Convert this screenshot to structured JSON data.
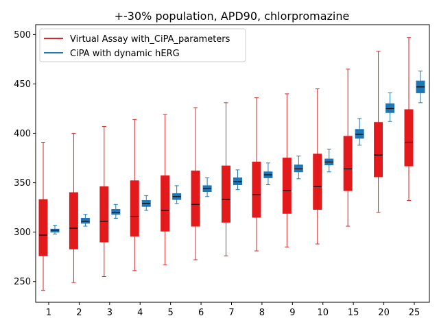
{
  "chart_data": {
    "type": "box",
    "title": "+-30% population, APD90, chlorpromazine",
    "xlabel": "",
    "ylabel": "",
    "categories": [
      "1",
      "2",
      "3",
      "4",
      "5",
      "6",
      "7",
      "8",
      "9",
      "10",
      "15",
      "20",
      "25"
    ],
    "ylim": [
      229,
      510
    ],
    "yticks": [
      250,
      300,
      350,
      400,
      450,
      500
    ],
    "legend_position": "top-left",
    "grid": false,
    "series": [
      {
        "name": "Virtual Assay with_CiPA_parameters",
        "color": "#d62728",
        "fill": "#e31a1c",
        "boxes": [
          {
            "whislo": 241,
            "q1": 276,
            "med": 297,
            "q3": 333,
            "whishi": 391
          },
          {
            "whislo": 249,
            "q1": 283,
            "med": 304,
            "q3": 340,
            "whishi": 400
          },
          {
            "whislo": 255,
            "q1": 290,
            "med": 311,
            "q3": 346,
            "whishi": 407
          },
          {
            "whislo": 261,
            "q1": 296,
            "med": 316,
            "q3": 352,
            "whishi": 414
          },
          {
            "whislo": 267,
            "q1": 301,
            "med": 322,
            "q3": 357,
            "whishi": 419
          },
          {
            "whislo": 272,
            "q1": 306,
            "med": 328,
            "q3": 362,
            "whishi": 426
          },
          {
            "whislo": 276,
            "q1": 310,
            "med": 333,
            "q3": 367,
            "whishi": 431
          },
          {
            "whislo": 281,
            "q1": 315,
            "med": 338,
            "q3": 371,
            "whishi": 436
          },
          {
            "whislo": 285,
            "q1": 319,
            "med": 342,
            "q3": 375,
            "whishi": 440
          },
          {
            "whislo": 288,
            "q1": 323,
            "med": 346,
            "q3": 379,
            "whishi": 445
          },
          {
            "whislo": 306,
            "q1": 342,
            "med": 364,
            "q3": 397,
            "whishi": 465
          },
          {
            "whislo": 320,
            "q1": 356,
            "med": 378,
            "q3": 411,
            "whishi": 483
          },
          {
            "whislo": 332,
            "q1": 367,
            "med": 391,
            "q3": 424,
            "whishi": 497
          }
        ]
      },
      {
        "name": "CiPA with dynamic hERG",
        "color": "#1f77b4",
        "fill": "#1f77b4",
        "boxes": [
          {
            "whislo": 298,
            "q1": 300,
            "med": 302,
            "q3": 303,
            "whishi": 307
          },
          {
            "whislo": 306,
            "q1": 309,
            "med": 311,
            "q3": 314,
            "whishi": 318
          },
          {
            "whislo": 314,
            "q1": 318,
            "med": 320,
            "q3": 323,
            "whishi": 328
          },
          {
            "whislo": 322,
            "q1": 326,
            "med": 329,
            "q3": 332,
            "whishi": 337
          },
          {
            "whislo": 329,
            "q1": 333,
            "med": 336,
            "q3": 339,
            "whishi": 347
          },
          {
            "whislo": 336,
            "q1": 341,
            "med": 344,
            "q3": 347,
            "whishi": 355
          },
          {
            "whislo": 343,
            "q1": 348,
            "med": 351,
            "q3": 355,
            "whishi": 363
          },
          {
            "whislo": 348,
            "q1": 355,
            "med": 358,
            "q3": 361,
            "whishi": 370
          },
          {
            "whislo": 354,
            "q1": 361,
            "med": 364,
            "q3": 368,
            "whishi": 377
          },
          {
            "whislo": 361,
            "q1": 368,
            "med": 371,
            "q3": 374,
            "whishi": 384
          },
          {
            "whislo": 388,
            "q1": 395,
            "med": 399,
            "q3": 404,
            "whishi": 415
          },
          {
            "whislo": 412,
            "q1": 421,
            "med": 425,
            "q3": 430,
            "whishi": 441
          },
          {
            "whislo": 431,
            "q1": 441,
            "med": 447,
            "q3": 453,
            "whishi": 463
          }
        ]
      }
    ]
  }
}
